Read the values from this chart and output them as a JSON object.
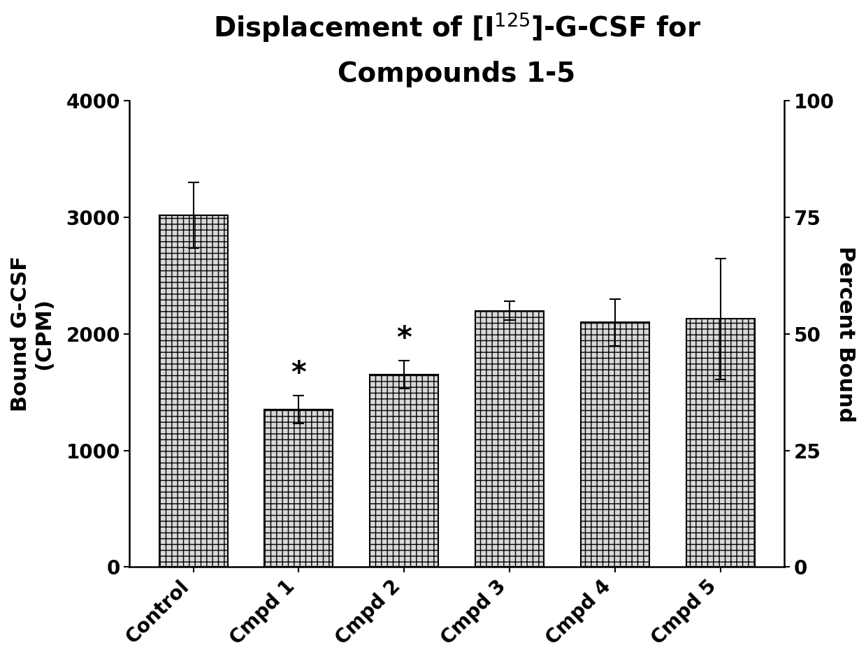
{
  "categories": [
    "Control",
    "Cmpd 1",
    "Cmpd 2",
    "Cmpd 3",
    "Cmpd 4",
    "Cmpd 5"
  ],
  "values": [
    3020,
    1350,
    1650,
    2200,
    2100,
    2130
  ],
  "errors": [
    280,
    120,
    120,
    80,
    200,
    520
  ],
  "bar_color": "#d8d8d8",
  "bar_edgecolor": "#000000",
  "bar_hatch": "++",
  "title_line1": "Displacement of [I$^{125}$]-G-CSF for",
  "title_line2": "Compounds 1-5",
  "ylabel_left": "Bound G-CSF\n(CPM)",
  "ylabel_right": "Percent Bound",
  "ylim_left": [
    0,
    4000
  ],
  "ylim_right": [
    0,
    100
  ],
  "yticks_left": [
    0,
    1000,
    2000,
    3000,
    4000
  ],
  "yticks_right": [
    0,
    25,
    50,
    75,
    100
  ],
  "significance_indices": [
    1,
    2
  ],
  "background_color": "#ffffff",
  "title_fontsize": 28,
  "axis_label_fontsize": 22,
  "tick_fontsize": 20,
  "star_fontsize": 30,
  "bar_width": 0.65,
  "figsize": [
    12.39,
    9.43
  ],
  "dpi": 100
}
